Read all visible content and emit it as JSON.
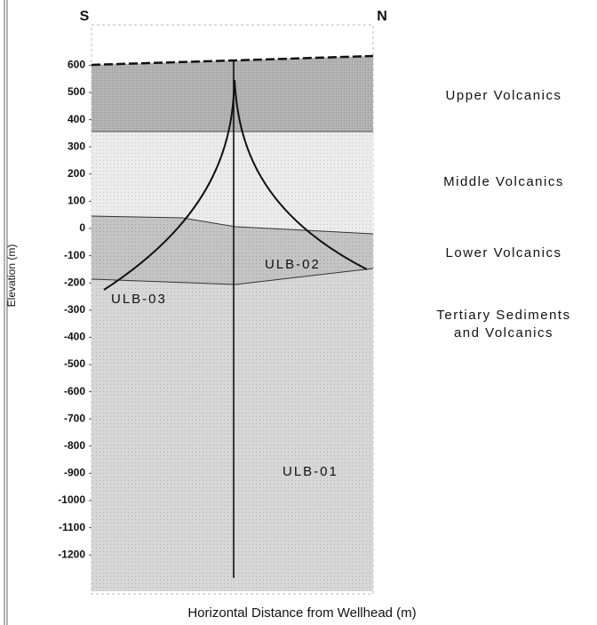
{
  "section": {
    "left_end": "S",
    "right_end": "N",
    "y_axis_label": "Elevation (m)",
    "x_axis_label": "Horizontal Distance from Wellhead (m)",
    "yticks": [
      600,
      500,
      400,
      300,
      200,
      100,
      0,
      -100,
      -200,
      -300,
      -400,
      -500,
      -600,
      -700,
      -800,
      -900,
      -1000,
      -1100,
      -1200
    ],
    "layers": [
      {
        "lines": [
          "Upper Volcanics"
        ]
      },
      {
        "lines": [
          "Middle Volcanics"
        ]
      },
      {
        "lines": [
          "Lower Volcanics"
        ]
      },
      {
        "lines": [
          "Tertiary Sediments",
          "and Volcanics"
        ]
      }
    ],
    "wells": [
      "ULB-01",
      "ULB-02",
      "ULB-03"
    ]
  }
}
